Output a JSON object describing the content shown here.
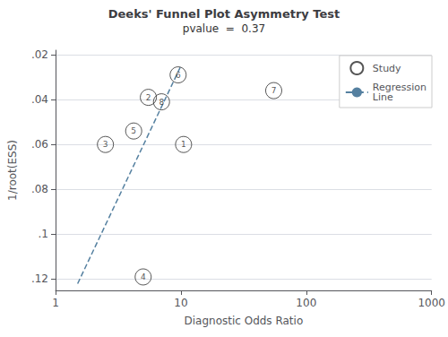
{
  "chart_data": {
    "type": "scatter",
    "title": "Deeks' Funnel Plot Asymmetry Test",
    "subtitle": "pvalue  =  0.37",
    "xlabel": "Diagnostic Odds Ratio",
    "ylabel": "1/root(ESS)",
    "log": "x",
    "xlim": [
      1,
      1000
    ],
    "xticks": [
      1,
      10,
      100,
      1000
    ],
    "ylim": [
      0.125,
      0.018
    ],
    "yticks": [
      {
        "value": 0.02,
        "label": ".02"
      },
      {
        "value": 0.04,
        "label": ".04"
      },
      {
        "value": 0.06,
        "label": ".06"
      },
      {
        "value": 0.08,
        "label": ".08"
      },
      {
        "value": 0.1,
        "label": ".1"
      },
      {
        "value": 0.12,
        "label": ".12"
      }
    ],
    "grid": true,
    "legend": "upper right",
    "series": [
      {
        "name": "Study",
        "type": "scatter",
        "marker": "circle",
        "color": "#2a2a2a",
        "labels": [
          "1",
          "2",
          "3",
          "5",
          "6",
          "7",
          "8",
          "4"
        ],
        "x": [
          10.5,
          5.5,
          2.5,
          4.2,
          9.5,
          55.0,
          7.0,
          5.0
        ],
        "values": [
          0.06,
          0.039,
          0.06,
          0.054,
          0.029,
          0.036,
          0.041,
          0.119
        ]
      },
      {
        "name": "Regression\nLine",
        "type": "line",
        "line_style": "dashed",
        "color": "#5580a0",
        "x": [
          1.5,
          10.0
        ],
        "values": [
          0.122,
          0.025
        ]
      }
    ]
  }
}
